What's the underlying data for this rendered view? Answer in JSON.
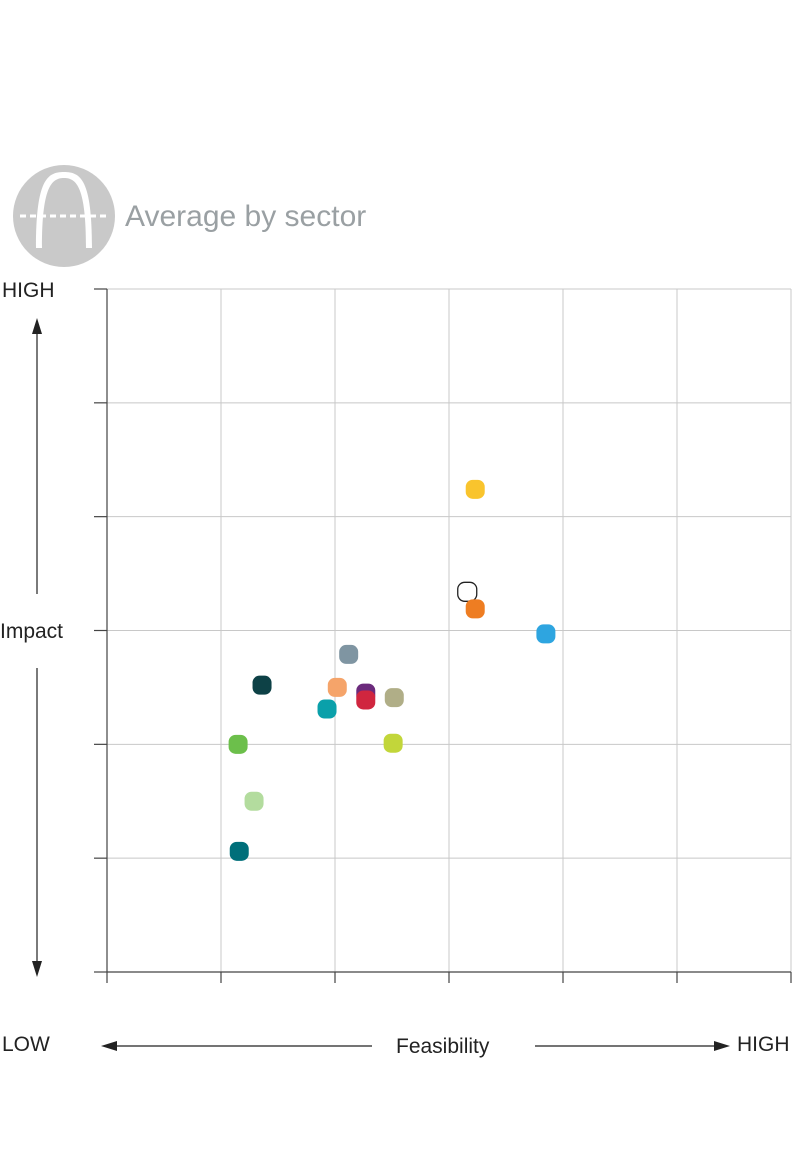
{
  "header": {
    "title": "Average by sector",
    "badge_icon": "arch-icon",
    "badge_color": "#c9c9c9"
  },
  "chart_data": {
    "type": "scatter",
    "title": "Average by sector",
    "xlabel": "Feasibility",
    "ylabel": "Impact",
    "x_low_label": "LOW",
    "x_high_label": "HIGH",
    "y_high_label": "HIGH",
    "xlim": [
      0,
      6
    ],
    "ylim": [
      0,
      6
    ],
    "grid": true,
    "points": [
      {
        "x": 3.23,
        "y": 4.24,
        "color": "#f9c42d",
        "hollow": false
      },
      {
        "x": 3.16,
        "y": 3.34,
        "color": "#ffffff",
        "hollow": true
      },
      {
        "x": 3.23,
        "y": 3.19,
        "color": "#ee7d22",
        "hollow": false
      },
      {
        "x": 3.85,
        "y": 2.97,
        "color": "#2ea5e0",
        "hollow": false
      },
      {
        "x": 2.12,
        "y": 2.79,
        "color": "#7f95a2",
        "hollow": false
      },
      {
        "x": 1.36,
        "y": 2.52,
        "color": "#0d4146",
        "hollow": false
      },
      {
        "x": 2.02,
        "y": 2.5,
        "color": "#f5a46a",
        "hollow": false
      },
      {
        "x": 2.27,
        "y": 2.45,
        "color": "#6b2a7c",
        "hollow": false
      },
      {
        "x": 2.27,
        "y": 2.39,
        "color": "#d0263f",
        "hollow": false
      },
      {
        "x": 2.52,
        "y": 2.41,
        "color": "#b0ae87",
        "hollow": false
      },
      {
        "x": 1.93,
        "y": 2.31,
        "color": "#0aa0aa",
        "hollow": false
      },
      {
        "x": 1.15,
        "y": 2.0,
        "color": "#6cbf4b",
        "hollow": false
      },
      {
        "x": 2.51,
        "y": 2.01,
        "color": "#c2d63a",
        "hollow": false
      },
      {
        "x": 1.29,
        "y": 1.5,
        "color": "#b3dc9e",
        "hollow": false
      },
      {
        "x": 1.16,
        "y": 1.06,
        "color": "#006f7a",
        "hollow": false
      }
    ]
  }
}
